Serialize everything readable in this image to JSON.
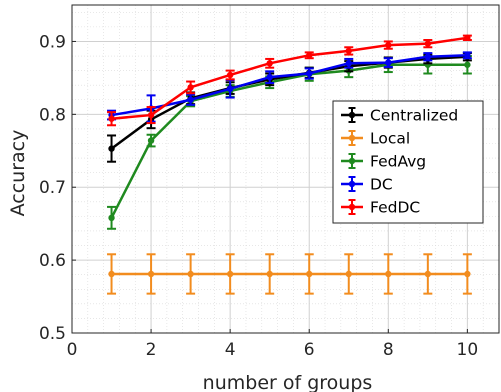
{
  "chart_data": {
    "type": "line",
    "xlabel": "number of groups",
    "ylabel": "Accuracy",
    "xlim": [
      0,
      10.8
    ],
    "ylim": [
      0.5,
      0.95
    ],
    "xticks": [
      0,
      2,
      4,
      6,
      8,
      10
    ],
    "yticks": [
      0.5,
      0.6,
      0.7,
      0.8,
      0.9
    ],
    "xtick_labels": [
      "0",
      "2",
      "4",
      "6",
      "8",
      "10"
    ],
    "ytick_labels": [
      "0.5",
      "0.6",
      "0.7",
      "0.8",
      "0.9"
    ],
    "grid": true,
    "minor_grid": true,
    "legend_position": "center-right",
    "x": [
      1,
      2,
      3,
      4,
      5,
      6,
      7,
      8,
      9,
      10
    ],
    "series": [
      {
        "name": "Centralized",
        "color": "#000000",
        "values": [
          0.753,
          0.793,
          0.822,
          0.836,
          0.848,
          0.857,
          0.866,
          0.871,
          0.876,
          0.879
        ],
        "errors": [
          0.018,
          0.012,
          0.008,
          0.008,
          0.008,
          0.007,
          0.007,
          0.007,
          0.006,
          0.005
        ]
      },
      {
        "name": "Local",
        "color": "#F28C1E",
        "values": [
          0.581,
          0.581,
          0.581,
          0.581,
          0.581,
          0.581,
          0.581,
          0.581,
          0.581,
          0.581
        ],
        "errors": [
          0.027,
          0.027,
          0.027,
          0.027,
          0.027,
          0.027,
          0.027,
          0.027,
          0.027,
          0.027
        ]
      },
      {
        "name": "FedAvg",
        "color": "#1F8A1F",
        "values": [
          0.658,
          0.764,
          0.818,
          0.832,
          0.844,
          0.855,
          0.86,
          0.868,
          0.868,
          0.868
        ],
        "errors": [
          0.015,
          0.008,
          0.007,
          0.008,
          0.008,
          0.009,
          0.009,
          0.01,
          0.012,
          0.012
        ]
      },
      {
        "name": "DC",
        "color": "#0000F0",
        "values": [
          0.799,
          0.808,
          0.82,
          0.835,
          0.851,
          0.856,
          0.87,
          0.871,
          0.879,
          0.881
        ],
        "errors": [
          0.006,
          0.018,
          0.007,
          0.012,
          0.008,
          0.007,
          0.006,
          0.006,
          0.005,
          0.004
        ]
      },
      {
        "name": "FedDC",
        "color": "#FF0000",
        "values": [
          0.794,
          0.799,
          0.837,
          0.854,
          0.87,
          0.881,
          0.887,
          0.895,
          0.897,
          0.905
        ],
        "errors": [
          0.009,
          0.011,
          0.008,
          0.006,
          0.006,
          0.004,
          0.005,
          0.005,
          0.005,
          0.003
        ]
      }
    ]
  }
}
